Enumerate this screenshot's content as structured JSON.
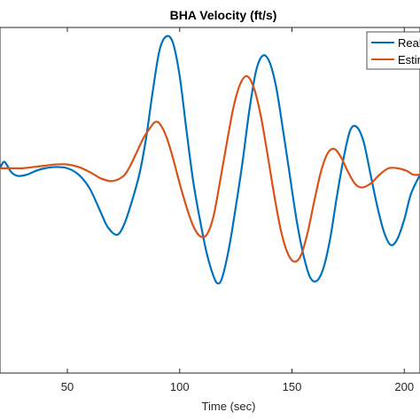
{
  "chart_data": {
    "type": "line",
    "title": "BHA Velocity (ft/s)",
    "xlabel": "Time (sec)",
    "ylabel": "",
    "xlim": [
      20,
      207
    ],
    "ylim": [
      -1.6,
      1.1
    ],
    "x_ticks": [
      50,
      100,
      150,
      200
    ],
    "x_tick_labels": [
      "50",
      "100",
      "150",
      "200"
    ],
    "grid": false,
    "legend_position": "top-right",
    "series": [
      {
        "name": "Real",
        "color": "#0072BD",
        "points": [
          [
            20,
            0.0
          ],
          [
            22,
            0.05
          ],
          [
            25,
            -0.03
          ],
          [
            28,
            -0.06
          ],
          [
            32,
            -0.05
          ],
          [
            36,
            -0.02
          ],
          [
            40,
            0.0
          ],
          [
            45,
            0.01
          ],
          [
            50,
            0.0
          ],
          [
            55,
            -0.05
          ],
          [
            60,
            -0.16
          ],
          [
            65,
            -0.35
          ],
          [
            68,
            -0.46
          ],
          [
            72,
            -0.52
          ],
          [
            75,
            -0.45
          ],
          [
            78,
            -0.3
          ],
          [
            82,
            -0.05
          ],
          [
            85,
            0.23
          ],
          [
            88,
            0.6
          ],
          [
            91,
            0.92
          ],
          [
            94,
            1.03
          ],
          [
            97,
            0.98
          ],
          [
            100,
            0.72
          ],
          [
            103,
            0.3
          ],
          [
            106,
            -0.1
          ],
          [
            109,
            -0.4
          ],
          [
            112,
            -0.66
          ],
          [
            115,
            -0.84
          ],
          [
            117,
            -0.9
          ],
          [
            119,
            -0.85
          ],
          [
            122,
            -0.62
          ],
          [
            125,
            -0.3
          ],
          [
            128,
            0.05
          ],
          [
            131,
            0.45
          ],
          [
            134,
            0.76
          ],
          [
            137,
            0.88
          ],
          [
            140,
            0.83
          ],
          [
            143,
            0.63
          ],
          [
            146,
            0.3
          ],
          [
            149,
            -0.05
          ],
          [
            152,
            -0.4
          ],
          [
            155,
            -0.67
          ],
          [
            158,
            -0.85
          ],
          [
            161,
            -0.88
          ],
          [
            164,
            -0.78
          ],
          [
            167,
            -0.55
          ],
          [
            170,
            -0.22
          ],
          [
            173,
            0.08
          ],
          [
            176,
            0.3
          ],
          [
            179,
            0.32
          ],
          [
            182,
            0.2
          ],
          [
            185,
            -0.05
          ],
          [
            188,
            -0.3
          ],
          [
            191,
            -0.5
          ],
          [
            194,
            -0.6
          ],
          [
            197,
            -0.55
          ],
          [
            200,
            -0.4
          ],
          [
            203,
            -0.2
          ],
          [
            207,
            -0.05
          ]
        ]
      },
      {
        "name": "Estimated",
        "color": "#D95319",
        "points": [
          [
            20,
            0.0
          ],
          [
            25,
            0.0
          ],
          [
            30,
            0.0
          ],
          [
            35,
            0.01
          ],
          [
            40,
            0.02
          ],
          [
            45,
            0.03
          ],
          [
            50,
            0.03
          ],
          [
            55,
            0.01
          ],
          [
            60,
            -0.03
          ],
          [
            65,
            -0.08
          ],
          [
            70,
            -0.1
          ],
          [
            75,
            -0.06
          ],
          [
            78,
            0.02
          ],
          [
            81,
            0.13
          ],
          [
            84,
            0.24
          ],
          [
            87,
            0.32
          ],
          [
            89,
            0.36
          ],
          [
            91,
            0.35
          ],
          [
            94,
            0.25
          ],
          [
            97,
            0.08
          ],
          [
            100,
            -0.12
          ],
          [
            103,
            -0.3
          ],
          [
            106,
            -0.45
          ],
          [
            109,
            -0.53
          ],
          [
            112,
            -0.52
          ],
          [
            115,
            -0.38
          ],
          [
            118,
            -0.1
          ],
          [
            121,
            0.2
          ],
          [
            124,
            0.48
          ],
          [
            127,
            0.66
          ],
          [
            130,
            0.72
          ],
          [
            133,
            0.63
          ],
          [
            136,
            0.42
          ],
          [
            139,
            0.12
          ],
          [
            142,
            -0.2
          ],
          [
            145,
            -0.48
          ],
          [
            148,
            -0.66
          ],
          [
            151,
            -0.73
          ],
          [
            154,
            -0.68
          ],
          [
            157,
            -0.5
          ],
          [
            160,
            -0.25
          ],
          [
            163,
            -0.02
          ],
          [
            166,
            0.12
          ],
          [
            169,
            0.15
          ],
          [
            172,
            0.08
          ],
          [
            175,
            -0.03
          ],
          [
            178,
            -0.12
          ],
          [
            181,
            -0.15
          ],
          [
            185,
            -0.12
          ],
          [
            189,
            -0.05
          ],
          [
            193,
            0.0
          ],
          [
            197,
            0.0
          ],
          [
            201,
            -0.02
          ],
          [
            204,
            -0.05
          ],
          [
            207,
            -0.05
          ]
        ]
      }
    ]
  }
}
